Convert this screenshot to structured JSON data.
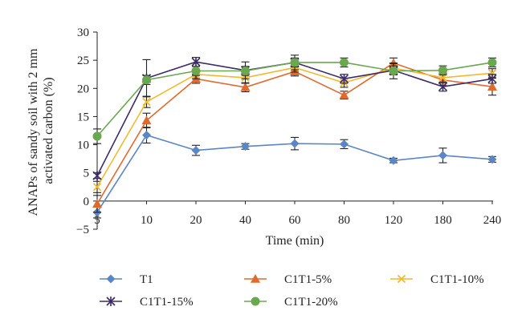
{
  "chart_data": {
    "type": "line",
    "xlabel": "Time (min)",
    "ylabel_lines": [
      "ANAPs of sandy soil with 2 mm",
      "activated carbon (%)"
    ],
    "categories": [
      "5",
      "10",
      "20",
      "40",
      "60",
      "80",
      "120",
      "180",
      "240"
    ],
    "ylim": [
      -5,
      30
    ],
    "yticks": [
      "30",
      "25",
      "20",
      "15",
      "10",
      "5",
      "0",
      "−5"
    ],
    "ytick_values": [
      30,
      25,
      20,
      15,
      10,
      5,
      0,
      -5
    ],
    "grid": false,
    "error_bars": true,
    "legend_position": "bottom",
    "series": [
      {
        "name": "T1",
        "color": "#5b86c5",
        "marker": "diamond",
        "values": [
          -2,
          11.7,
          9,
          9.7,
          10.2,
          10.1,
          7.2,
          8.1,
          7.4
        ],
        "errors": [
          1.0,
          1.4,
          0.9,
          0.5,
          1.1,
          0.8,
          0.4,
          1.3,
          0.5
        ]
      },
      {
        "name": "C1T1-5%",
        "color": "#e06a2e",
        "marker": "triangle",
        "values": [
          -0.5,
          14.3,
          21.7,
          20.2,
          23.0,
          18.8,
          24.5,
          21.5,
          20.3
        ],
        "errors": [
          1.5,
          1.3,
          0.8,
          0.8,
          0.8,
          0.7,
          0.9,
          1.0,
          1.5
        ]
      },
      {
        "name": "C1T1-10%",
        "color": "#f2b92e",
        "marker": "x",
        "values": [
          2.5,
          17.6,
          22.5,
          21.9,
          23.7,
          21.0,
          23.6,
          21.9,
          22.7
        ],
        "errors": [
          1.0,
          1.0,
          0.8,
          1.0,
          0.8,
          0.8,
          0.8,
          0.8,
          0.8
        ]
      },
      {
        "name": "C1T1-15%",
        "color": "#3b2b66",
        "marker": "star",
        "values": [
          4.5,
          21.8,
          24.7,
          23.2,
          24.6,
          21.7,
          23.2,
          20.3,
          21.7
        ],
        "errors": [
          0.5,
          3.3,
          0.8,
          1.5,
          1.3,
          0.8,
          0.8,
          0.8,
          0.8
        ]
      },
      {
        "name": "C1T1-20%",
        "color": "#6aa84f",
        "marker": "circle",
        "values": [
          11.5,
          21.5,
          23.1,
          23.1,
          24.6,
          24.6,
          23.1,
          23.2,
          24.6
        ],
        "errors": [
          1.3,
          0.8,
          0.8,
          0.8,
          0.8,
          0.8,
          1.4,
          0.8,
          0.8
        ]
      }
    ]
  }
}
